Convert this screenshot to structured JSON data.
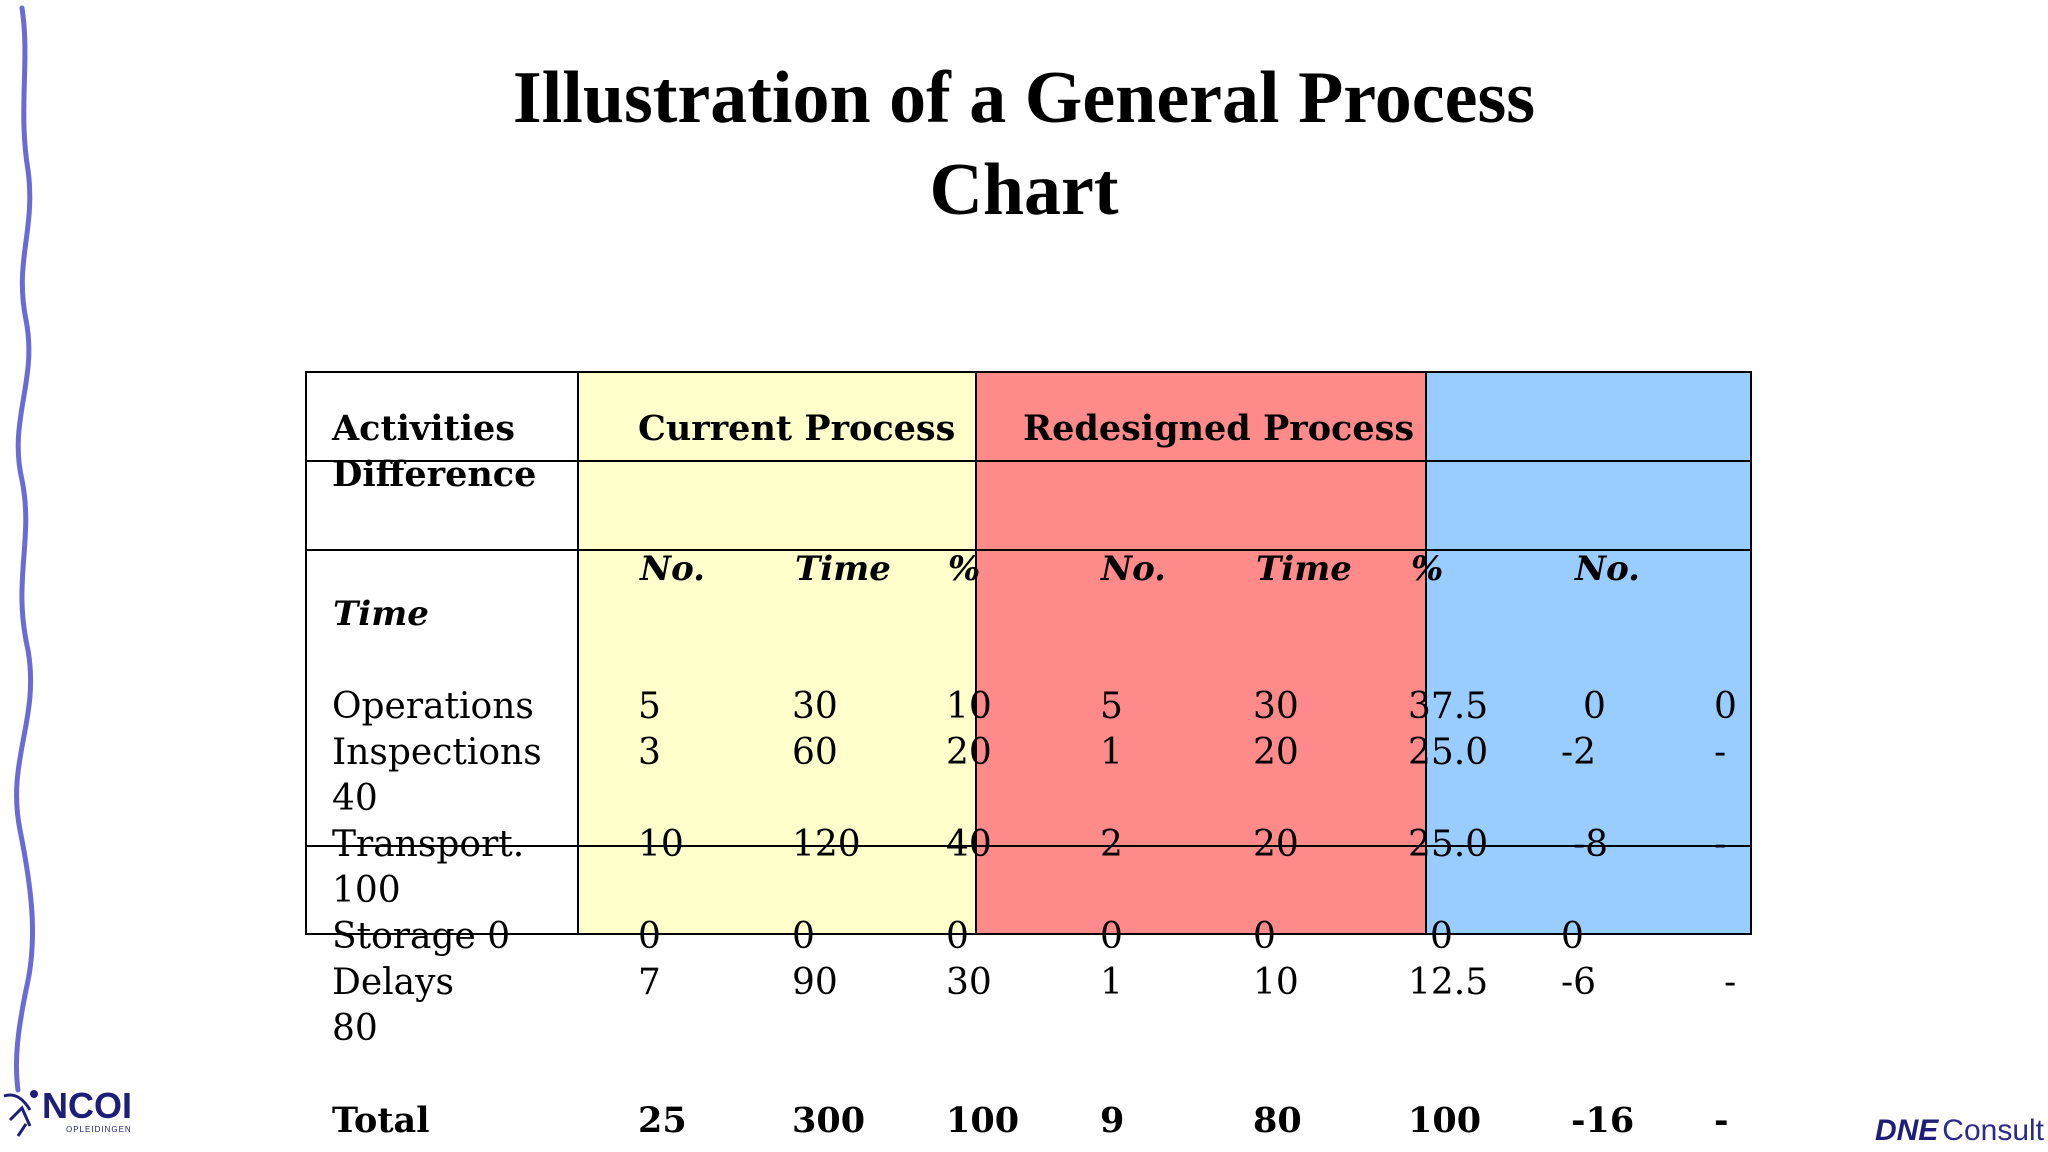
{
  "title": {
    "line1": "Illustration of a General Process",
    "line2": "Chart"
  },
  "headers": {
    "activities": "Activities",
    "difference": "Difference",
    "current": "Current Process",
    "redesigned": "Redesigned Process",
    "no1": "No.",
    "time1": "Time",
    "pct1": "%",
    "no2": "No.",
    "time2": "Time",
    "pct2": "%",
    "no3": "No.",
    "time_label": "Time"
  },
  "rows": [
    {
      "label": "Operations",
      "c": [
        "5",
        "30",
        "10",
        "5",
        "30",
        "37.5",
        "0",
        "0"
      ]
    },
    {
      "label": "Inspections",
      "cont": "40",
      "c": [
        "3",
        "60",
        "20",
        "1",
        "20",
        "25.0",
        "-2",
        "-"
      ]
    },
    {
      "label": "Transport.",
      "cont": "100",
      "c": [
        "10",
        "120",
        "40",
        "2",
        "20",
        "25.0",
        "-8",
        "-"
      ]
    },
    {
      "label": "Storage 0",
      "c": [
        "0",
        "0",
        "0",
        "0",
        "0",
        "0",
        "0"
      ]
    },
    {
      "label": "Delays",
      "cont": "80",
      "c": [
        "7",
        "90",
        "30",
        "1",
        "10",
        "12.5",
        "-6",
        "-"
      ]
    }
  ],
  "total": {
    "label": "Total",
    "c": [
      "25",
      "300",
      "100",
      "9",
      "80",
      "100",
      "-16",
      "-"
    ]
  },
  "logos": {
    "ncoi": "NCOI",
    "ncoi_sub": "OPLEIDINGEN",
    "dne_strong": "DNE",
    "dne_rest": "Consult"
  },
  "colors": {
    "yellow": "#ffffcc",
    "red": "#ff8a8a",
    "blue": "#99ccff",
    "accent": "#6b6bd6"
  }
}
